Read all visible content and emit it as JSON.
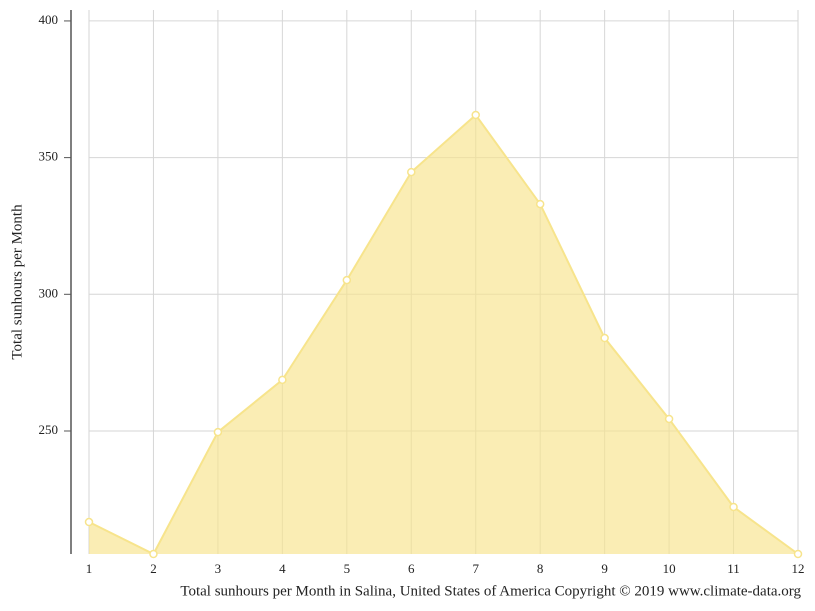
{
  "chart_data": {
    "type": "area",
    "x_label": "Total sunhours per Month in Salina, United States of America Copyright © 2019 www.climate-data.org",
    "y_label": "Total sunhours per Month",
    "x": [
      1,
      2,
      3,
      4,
      5,
      6,
      7,
      8,
      9,
      10,
      11,
      12
    ],
    "series": [
      {
        "name": "Total sunhours per Month",
        "color": "#f7e48c",
        "values": [
          216.7,
          205,
          249.6,
          268.7,
          305.2,
          344.7,
          365.6,
          333,
          284,
          254.4,
          222.2,
          205
        ]
      }
    ],
    "xlim": [
      1,
      12
    ],
    "xticks": [
      1,
      2,
      3,
      4,
      5,
      6,
      7,
      8,
      9,
      10,
      11,
      12
    ],
    "ylim": [
      205,
      404
    ],
    "yticks": [
      250,
      300,
      350,
      400
    ],
    "grid": true
  }
}
